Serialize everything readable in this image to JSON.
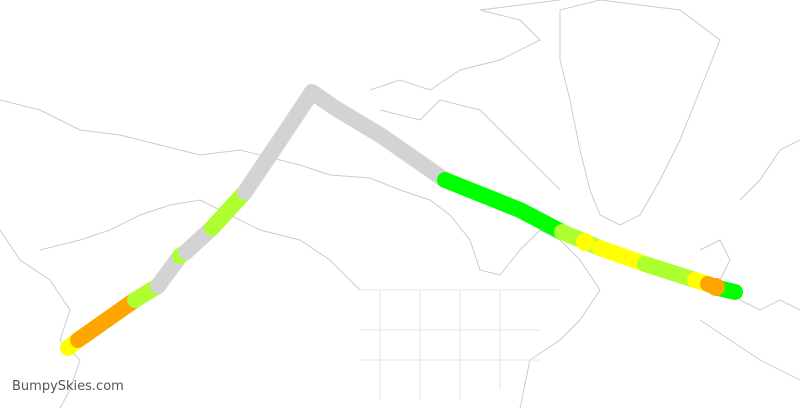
{
  "brand": "BumpySkies.com",
  "colors": {
    "no_data": "#d3d3d3",
    "smooth": "#00ff00",
    "light": "#adff2f",
    "moderate": "#ffff00",
    "heavy": "#ffa500",
    "coastline": "#cccccc"
  },
  "route": {
    "segments": [
      {
        "level": "moderate"
      },
      {
        "level": "heavy"
      },
      {
        "level": "light"
      },
      {
        "level": "no_data"
      },
      {
        "level": "light"
      },
      {
        "level": "no_data"
      },
      {
        "level": "light"
      },
      {
        "level": "no_data"
      },
      {
        "level": "smooth"
      },
      {
        "level": "light"
      },
      {
        "level": "moderate"
      },
      {
        "level": "light"
      },
      {
        "level": "moderate"
      },
      {
        "level": "heavy"
      },
      {
        "level": "smooth"
      }
    ]
  }
}
